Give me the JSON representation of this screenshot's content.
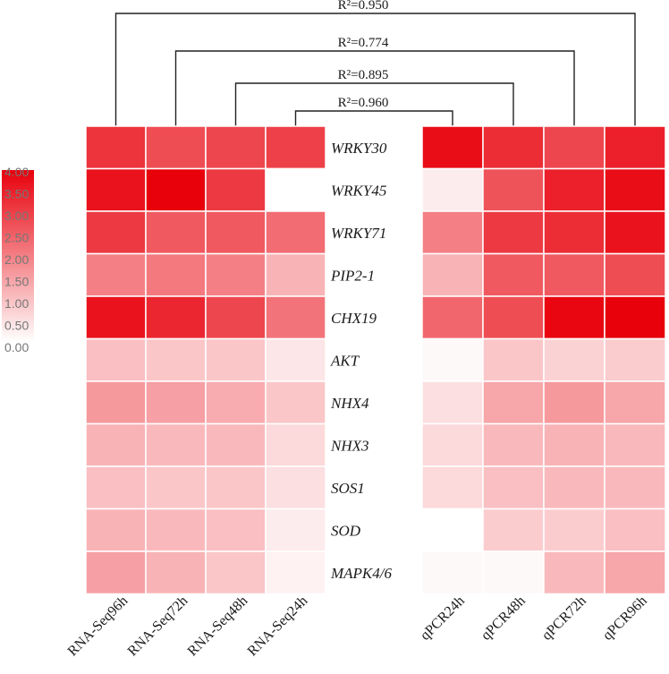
{
  "chart_data": {
    "type": "heatmap",
    "title": "",
    "genes": [
      "WRKY30",
      "WRKY45",
      "WRKY71",
      "PIP2-1",
      "CHX19",
      "AKT",
      "NHX4",
      "NHX3",
      "SOS1",
      "SOD",
      "MAPK4/6"
    ],
    "rna_columns": [
      "RNA-Seq96h",
      "RNA-Seq72h",
      "RNA-Seq48h",
      "RNA-Seq24h"
    ],
    "qpcr_columns": [
      "qPCR24h",
      "qPCR48h",
      "qPCR72h",
      "qPCR96h"
    ],
    "rna_values": [
      [
        3.2,
        2.8,
        2.9,
        3.0
      ],
      [
        3.7,
        4.0,
        3.1,
        0.0
      ],
      [
        3.1,
        2.6,
        2.6,
        2.3
      ],
      [
        2.0,
        2.1,
        2.0,
        1.2
      ],
      [
        3.7,
        3.4,
        2.9,
        2.2
      ],
      [
        1.0,
        0.9,
        0.9,
        0.4
      ],
      [
        1.6,
        1.5,
        1.3,
        0.9
      ],
      [
        1.2,
        1.1,
        1.1,
        0.6
      ],
      [
        1.0,
        0.9,
        0.9,
        0.5
      ],
      [
        1.2,
        1.1,
        1.0,
        0.3
      ],
      [
        1.5,
        1.2,
        0.9,
        0.2
      ]
    ],
    "qpcr_values": [
      [
        3.8,
        3.3,
        2.9,
        3.5
      ],
      [
        0.3,
        2.7,
        3.5,
        3.8
      ],
      [
        2.0,
        3.1,
        3.3,
        3.7
      ],
      [
        1.2,
        2.6,
        2.6,
        2.8
      ],
      [
        2.4,
        2.8,
        3.9,
        4.0
      ],
      [
        0.1,
        0.9,
        0.7,
        0.8
      ],
      [
        0.5,
        1.4,
        1.6,
        1.4
      ],
      [
        0.6,
        1.1,
        1.2,
        1.1
      ],
      [
        0.6,
        1.0,
        1.1,
        1.1
      ],
      [
        0.0,
        0.8,
        0.8,
        1.0
      ],
      [
        0.1,
        0.1,
        1.1,
        1.4
      ]
    ],
    "scale": {
      "min": 0.0,
      "max": 4.0,
      "ticks": [
        "4.00",
        "3.50",
        "3.00",
        "2.50",
        "2.00",
        "1.50",
        "1.00",
        "0.50",
        "0.00"
      ],
      "low_color": "#ffffff",
      "high_color": "#e8000b"
    },
    "correlations": [
      {
        "label": "R²=0.950",
        "from": "RNA-Seq96h",
        "to": "qPCR96h"
      },
      {
        "label": "R²=0.774",
        "from": "RNA-Seq72h",
        "to": "qPCR72h"
      },
      {
        "label": "R²=0.895",
        "from": "RNA-Seq48h",
        "to": "qPCR48h"
      },
      {
        "label": "R²=0.960",
        "from": "RNA-Seq24h",
        "to": "qPCR24h"
      }
    ]
  }
}
